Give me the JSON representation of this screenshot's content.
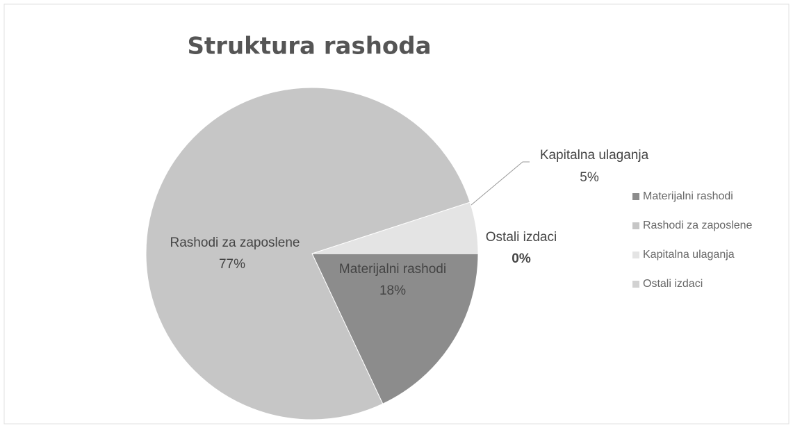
{
  "chart_data": {
    "type": "pie",
    "title": "Struktura rashoda",
    "categories": [
      "Materijalni rashodi",
      "Rashodi za zaposlene",
      "Kapitalna ulaganja",
      "Ostali izdaci"
    ],
    "values": [
      18,
      77,
      5,
      0
    ],
    "value_labels": [
      "18%",
      "77%",
      "5%",
      "0%"
    ],
    "colors": [
      "#8c8c8c",
      "#c6c6c6",
      "#e4e4e4",
      "#d2d2d2"
    ],
    "legend": "right"
  }
}
